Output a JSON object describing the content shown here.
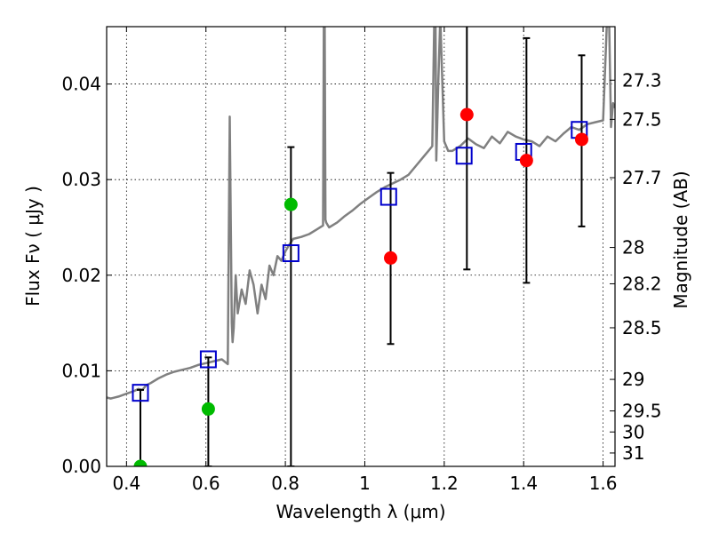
{
  "chart_data": {
    "type": "scatter",
    "xlabel": "Wavelength  λ (μm)",
    "ylabel": "Flux  Fν ( μJy )",
    "y2label": "Magnitude (AB)",
    "xlim": [
      0.35,
      1.63
    ],
    "ylim": [
      0.0,
      0.046
    ],
    "grid": true,
    "x_ticks": [
      0.4,
      0.6,
      0.8,
      1.0,
      1.2,
      1.4,
      1.6
    ],
    "x_tick_labels": [
      "0.4",
      "0.6",
      "0.8",
      "1",
      "1.2",
      "1.4",
      "1.6"
    ],
    "y_ticks": [
      0.0,
      0.01,
      0.02,
      0.03,
      0.04
    ],
    "y_tick_labels": [
      "0.00",
      "0.01",
      "0.02",
      "0.03",
      "0.04"
    ],
    "y2_ticks": [
      {
        "label": "27.3",
        "flux": 0.0404
      },
      {
        "label": "27.5",
        "flux": 0.0363
      },
      {
        "label": "27.7",
        "flux": 0.0302
      },
      {
        "label": "28",
        "flux": 0.0229
      },
      {
        "label": "28.2",
        "flux": 0.0191
      },
      {
        "label": "28.5",
        "flux": 0.0145
      },
      {
        "label": "29",
        "flux": 0.0091
      },
      {
        "label": "29.5",
        "flux": 0.0058
      },
      {
        "label": "30",
        "flux": 0.0036
      },
      {
        "label": "31",
        "flux": 0.0014
      }
    ],
    "series": [
      {
        "kind": "model_spectrum",
        "color": "#808080",
        "x": [
          0.35,
          0.36,
          0.38,
          0.4,
          0.42,
          0.43,
          0.44,
          0.45,
          0.46,
          0.48,
          0.5,
          0.52,
          0.54,
          0.56,
          0.58,
          0.6,
          0.62,
          0.64,
          0.655,
          0.66,
          0.665,
          0.667,
          0.67,
          0.675,
          0.68,
          0.69,
          0.7,
          0.71,
          0.72,
          0.73,
          0.74,
          0.75,
          0.76,
          0.77,
          0.78,
          0.79,
          0.8,
          0.81,
          0.815,
          0.82,
          0.84,
          0.86,
          0.88,
          0.895,
          0.897,
          0.899,
          0.901,
          0.903,
          0.91,
          0.93,
          0.95,
          0.97,
          0.99,
          1.01,
          1.03,
          1.05,
          1.07,
          1.09,
          1.11,
          1.13,
          1.15,
          1.16,
          1.17,
          1.175,
          1.178,
          1.18,
          1.185,
          1.19,
          1.2,
          1.21,
          1.22,
          1.24,
          1.26,
          1.28,
          1.3,
          1.32,
          1.34,
          1.36,
          1.38,
          1.4,
          1.42,
          1.44,
          1.46,
          1.48,
          1.5,
          1.52,
          1.54,
          1.56,
          1.58,
          1.6,
          1.61,
          1.615,
          1.62,
          1.625,
          1.63
        ],
        "y": [
          0.0072,
          0.0071,
          0.0073,
          0.0076,
          0.0079,
          0.0081,
          0.008,
          0.0085,
          0.0087,
          0.0092,
          0.0096,
          0.0099,
          0.0101,
          0.0103,
          0.0106,
          0.0108,
          0.011,
          0.0112,
          0.0107,
          0.0366,
          0.015,
          0.013,
          0.0145,
          0.02,
          0.016,
          0.0185,
          0.017,
          0.0205,
          0.019,
          0.016,
          0.019,
          0.0175,
          0.021,
          0.02,
          0.022,
          0.0215,
          0.0225,
          0.0232,
          0.0235,
          0.0238,
          0.024,
          0.0243,
          0.0248,
          0.0252,
          0.047,
          0.047,
          0.0258,
          0.0255,
          0.025,
          0.0255,
          0.0262,
          0.0268,
          0.0275,
          0.0281,
          0.0287,
          0.0292,
          0.0296,
          0.03,
          0.0305,
          0.0315,
          0.0325,
          0.033,
          0.0335,
          0.047,
          0.047,
          0.032,
          0.04,
          0.047,
          0.034,
          0.033,
          0.033,
          0.0335,
          0.0343,
          0.0337,
          0.0333,
          0.0345,
          0.0338,
          0.035,
          0.0345,
          0.0342,
          0.034,
          0.0335,
          0.0345,
          0.034,
          0.0348,
          0.0355,
          0.0352,
          0.0358,
          0.036,
          0.0362,
          0.047,
          0.047,
          0.0355,
          0.038,
          0.0375
        ]
      },
      {
        "kind": "model_photometry",
        "marker": "square",
        "color": "#0000cc",
        "x": [
          0.435,
          0.606,
          0.814,
          1.06,
          1.25,
          1.4,
          1.54
        ],
        "y": [
          0.0077,
          0.0112,
          0.0223,
          0.0282,
          0.0325,
          0.0329,
          0.0352
        ]
      },
      {
        "kind": "observed_upper",
        "marker": "circle",
        "color": "#00bb00",
        "x": [
          0.435,
          0.606,
          0.814
        ],
        "y": [
          0.0,
          0.006,
          0.0274
        ],
        "yerr_low": [
          0.0,
          0.0,
          0.0
        ],
        "yerr_high": [
          0.008,
          0.0114,
          0.0334
        ]
      },
      {
        "kind": "observed_detection",
        "marker": "circle",
        "color": "#ff0000",
        "x": [
          1.065,
          1.257,
          1.407,
          1.546
        ],
        "y": [
          0.0218,
          0.0368,
          0.032,
          0.0342
        ],
        "yerr_low": [
          0.0128,
          0.0206,
          0.0192,
          0.0251
        ],
        "yerr_high": [
          0.0307,
          0.048,
          0.0448,
          0.043
        ]
      }
    ]
  }
}
